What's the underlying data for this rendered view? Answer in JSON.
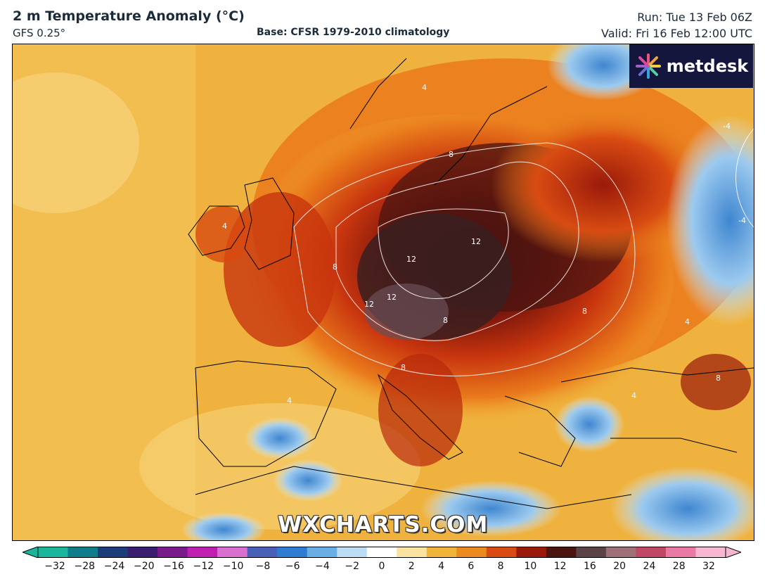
{
  "header": {
    "title": "2 m Temperature Anomaly (°C)",
    "model": "GFS 0.25°",
    "base": "Base: CFSR 1979-2010 climatology",
    "run": "Run: Tue 13 Feb 06Z",
    "valid": "Valid: Fri 16 Feb 12:00 UTC"
  },
  "logo": {
    "text": "metdesk",
    "icon": "metdesk-burst-icon"
  },
  "watermark": "WXCHARTS.COM",
  "map": {
    "contour_labels": [
      "4",
      "4",
      "8",
      "8",
      "12",
      "12",
      "12",
      "12",
      "8",
      "8",
      "4",
      "-4",
      "-4",
      "8",
      "4",
      "8",
      "4"
    ]
  },
  "colorbar": {
    "ticks": [
      "−32",
      "−28",
      "−24",
      "−20",
      "−16",
      "−12",
      "−10",
      "−8",
      "−6",
      "−4",
      "−2",
      "0",
      "2",
      "4",
      "6",
      "8",
      "10",
      "12",
      "16",
      "20",
      "24",
      "28",
      "32"
    ],
    "colors": [
      "#19b69b",
      "#0f7d8c",
      "#1d3d7a",
      "#3a1f6e",
      "#7a1b8c",
      "#c020b0",
      "#d870d0",
      "#4a5fb8",
      "#2f7dd0",
      "#6aaee6",
      "#bcdcf4",
      "#ffffff",
      "#f8e3a0",
      "#f0b43a",
      "#eb8a1e",
      "#d84b12",
      "#9a1a0a",
      "#4a1410",
      "#5a4448",
      "#a07078",
      "#c04864",
      "#e87aa4",
      "#f5b8d0"
    ]
  }
}
